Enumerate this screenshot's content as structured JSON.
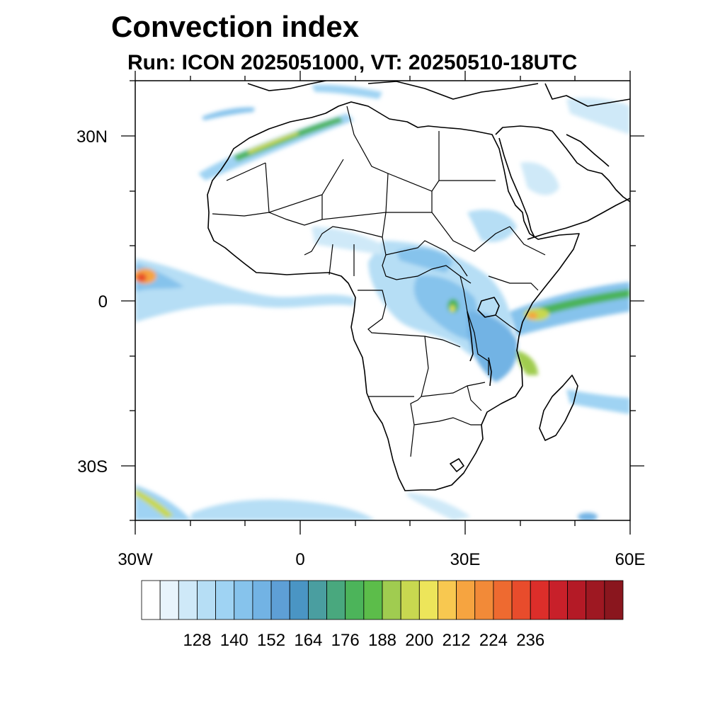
{
  "title": "Convection index",
  "subtitle": "Run: ICON 2025051000,  VT: 20250510-18UTC",
  "map": {
    "region": "Africa",
    "lon_range": [
      -30,
      60
    ],
    "lat_range": [
      -40,
      40
    ],
    "x_ticks": [
      "30W",
      "0",
      "30E",
      "60E"
    ],
    "y_ticks": [
      "30N",
      "0",
      "30S"
    ]
  },
  "legend": {
    "labels": [
      "128",
      "140",
      "152",
      "164",
      "176",
      "188",
      "200",
      "212",
      "224",
      "236"
    ],
    "colors": [
      "#ffffff",
      "#e8f4fc",
      "#cfe9f8",
      "#b6def5",
      "#9fd3f3",
      "#86c3ec",
      "#72b3e4",
      "#5e9fd6",
      "#4a95c4",
      "#4a9ea0",
      "#49a87e",
      "#4cb45a",
      "#5cbd4a",
      "#a0cc50",
      "#c8d850",
      "#ede55a",
      "#f8c850",
      "#f6a440",
      "#f28a38",
      "#ee6a30",
      "#e84c2c",
      "#dc2e2a",
      "#c8202a",
      "#b41a26",
      "#9e1822",
      "#8a161e"
    ]
  }
}
